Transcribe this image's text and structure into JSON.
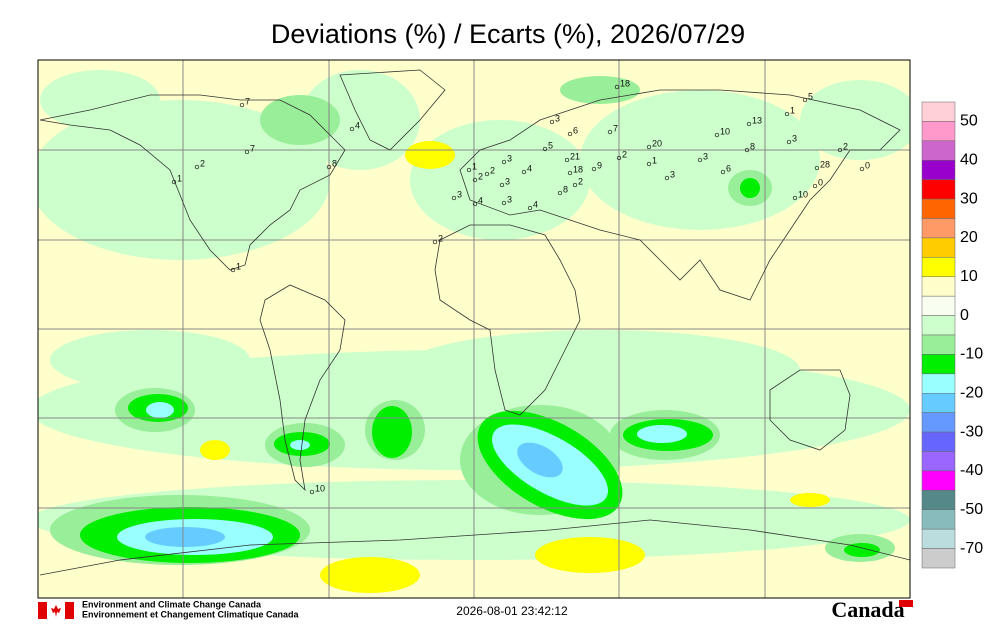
{
  "title": "Deviations (%) / Ecarts (%), 2026/07/29",
  "legend": {
    "labels": [
      50,
      40,
      30,
      20,
      10,
      0,
      -10,
      -20,
      -30,
      -40,
      -50,
      -70
    ],
    "colors": [
      "#ffd0d8",
      "#ff99cc",
      "#cc66cc",
      "#9900cc",
      "#ff0000",
      "#ff6600",
      "#ff9966",
      "#ffcc00",
      "#ffff00",
      "#ffffcc",
      "#f8fff0",
      "#ccffcc",
      "#99ee99",
      "#00ee00",
      "#99ffff",
      "#66ccff",
      "#6699ff",
      "#6666ff",
      "#9966ff",
      "#ff00ff",
      "#558888",
      "#88bbbb",
      "#bbdddd",
      "#cccccc"
    ]
  },
  "stations": [
    18,
    7,
    4,
    3,
    6,
    7,
    1,
    5,
    13,
    10,
    3,
    2,
    0,
    28,
    8,
    3,
    20,
    2,
    1,
    3,
    9,
    21,
    18,
    2,
    8,
    5,
    4,
    3,
    3,
    2,
    1,
    2,
    3,
    4,
    3,
    4,
    2,
    1,
    7,
    8,
    2,
    1,
    10,
    10,
    0,
    6
  ],
  "footer": {
    "agency_en": "Environment and Climate Change Canada",
    "agency_fr": "Environnement et Changement Climatique Canada",
    "timestamp": "2026-08-01 23:42:12",
    "wordmark": "Canada"
  }
}
